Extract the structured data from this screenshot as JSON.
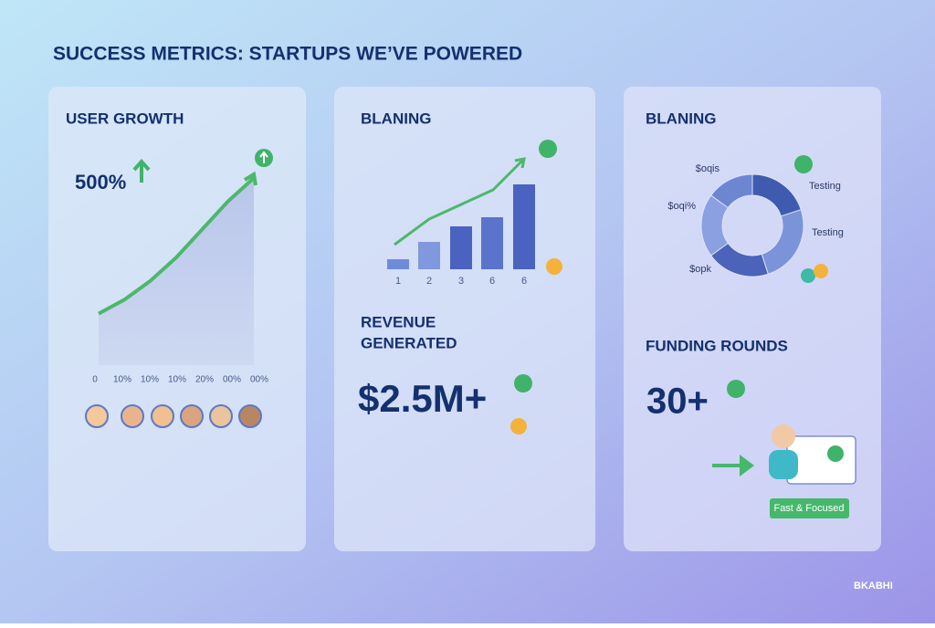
{
  "title": "SUCCESS METRICS: STARTUPS WE’VE POWERED",
  "cards": [
    {
      "heading": "USER GROWTH",
      "metric": "500%"
    },
    {
      "heading": "BLANING",
      "stat_heading": [
        "REVENUE",
        "GENERATED"
      ],
      "metric": "$2.5M+"
    },
    {
      "heading": "BLANING",
      "stat_heading": "FUNDING ROUNDS",
      "metric": "30+",
      "badge": "Fast & Focused"
    }
  ],
  "brand": "BKABHI",
  "chart_data": [
    {
      "type": "area",
      "categories": [
        "0",
        "10%",
        "10%",
        "10%",
        "20%",
        "00%",
        "00%"
      ],
      "values": [
        55,
        70,
        90,
        115,
        145,
        175,
        200
      ],
      "color": "#4cb86a"
    },
    {
      "type": "bar",
      "categories": [
        "1",
        "2",
        "3",
        "6",
        "6"
      ],
      "values": [
        11,
        30,
        47,
        57,
        93
      ],
      "colors": [
        "#6f8bd8",
        "#7f98de",
        "#4a63c0",
        "#5a74cc",
        "#4a63c0"
      ]
    },
    {
      "type": "donut",
      "categories": [
        "Testing",
        "Testing",
        "$opk",
        "$oqi%",
        "$oqis"
      ],
      "values": [
        20,
        25,
        20,
        20,
        15
      ],
      "colors": [
        "#3f5bb0",
        "#7b93d8",
        "#4b63b8",
        "#8aa0e0",
        "#6c86d2"
      ]
    }
  ]
}
